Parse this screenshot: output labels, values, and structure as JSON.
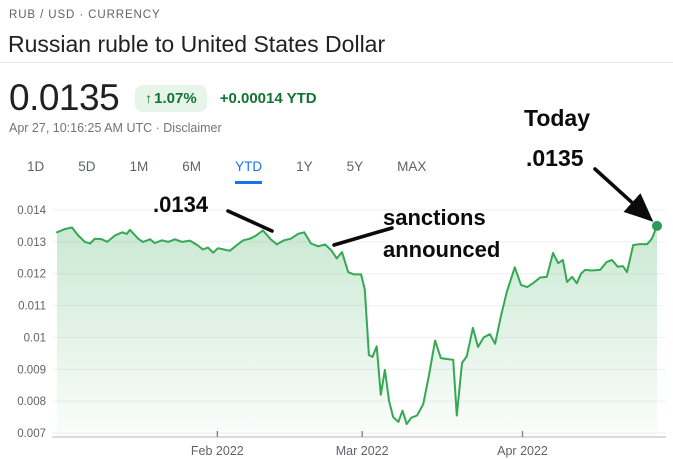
{
  "header": {
    "breadcrumb": "RUB / USD · CURRENCY",
    "title": "Russian ruble to United States Dollar"
  },
  "quote": {
    "price": "0.0135",
    "change_arrow": "↑",
    "change_percent": "1.07%",
    "change_ytd": "+0.00014 YTD",
    "timestamp": "Apr 27, 10:16:25 AM UTC",
    "separator": "·",
    "disclaimer_label": "Disclaimer"
  },
  "range_tabs": {
    "items": [
      "1D",
      "5D",
      "1M",
      "6M",
      "YTD",
      "1Y",
      "5Y",
      "MAX"
    ],
    "selected": "YTD"
  },
  "annotations": {
    "peak_label": ".0134",
    "sanctions_line1": "sanctions",
    "sanctions_line2": "announced",
    "today_label": "Today",
    "today_value": ".0135"
  },
  "colors": {
    "accent_green": "#34a853",
    "dot_green": "#2d9b57",
    "badge_bg": "#e6f4ea",
    "badge_text": "#137333",
    "tab_active": "#1a73e8",
    "text_primary": "#202124",
    "text_secondary": "#5f6368",
    "annotation": "#0b0b0b",
    "grid": "#eef0f2",
    "axis": "#c4c7cc"
  },
  "chart_data": {
    "type": "area",
    "title": "Russian ruble to United States Dollar — YTD",
    "series_name": "RUB / USD",
    "x_unit": "days since Jan 1, 2022",
    "x_range": [
      0,
      116
    ],
    "ylim": [
      0.007,
      0.0141
    ],
    "grid": "horizontal",
    "legend": "none",
    "y_ticks": [
      {
        "label": "0.014",
        "value": 0.014
      },
      {
        "label": "0.013",
        "value": 0.013
      },
      {
        "label": "0.012",
        "value": 0.012
      },
      {
        "label": "0.011",
        "value": 0.011
      },
      {
        "label": "0.01",
        "value": 0.01
      },
      {
        "label": "0.009",
        "value": 0.009
      },
      {
        "label": "0.008",
        "value": 0.008
      },
      {
        "label": "0.007",
        "value": 0.007
      }
    ],
    "x_ticks": [
      {
        "label": "Feb 2022",
        "day": 31
      },
      {
        "label": "Mar 2022",
        "day": 59
      },
      {
        "label": "Apr 2022",
        "day": 90
      }
    ],
    "series": [
      {
        "name": "RUB/USD",
        "points": [
          [
            0,
            0.0133
          ],
          [
            1.5,
            0.0134
          ],
          [
            2.9,
            0.01345
          ],
          [
            4.1,
            0.0132
          ],
          [
            5.4,
            0.013
          ],
          [
            6.4,
            0.01295
          ],
          [
            7.3,
            0.0131
          ],
          [
            8.7,
            0.01308
          ],
          [
            9.7,
            0.013
          ],
          [
            11.2,
            0.0132
          ],
          [
            12.6,
            0.0133
          ],
          [
            13.5,
            0.01325
          ],
          [
            14.1,
            0.01338
          ],
          [
            15.7,
            0.0131
          ],
          [
            16.6,
            0.013
          ],
          [
            18,
            0.01308
          ],
          [
            18.9,
            0.01296
          ],
          [
            20.3,
            0.01305
          ],
          [
            21.5,
            0.013
          ],
          [
            22.8,
            0.01308
          ],
          [
            24.2,
            0.013
          ],
          [
            25.7,
            0.01304
          ],
          [
            27.1,
            0.0129
          ],
          [
            28.2,
            0.01276
          ],
          [
            29.2,
            0.01282
          ],
          [
            30.2,
            0.01266
          ],
          [
            31.1,
            0.0128
          ],
          [
            32.3,
            0.01276
          ],
          [
            33.4,
            0.01272
          ],
          [
            34.8,
            0.0129
          ],
          [
            36,
            0.01305
          ],
          [
            37.3,
            0.0131
          ],
          [
            38.5,
            0.0132
          ],
          [
            39.8,
            0.01336
          ],
          [
            41.2,
            0.0131
          ],
          [
            42.5,
            0.01292
          ],
          [
            43.9,
            0.01305
          ],
          [
            45.2,
            0.0131
          ],
          [
            46.6,
            0.01325
          ],
          [
            47.8,
            0.0133
          ],
          [
            49.1,
            0.01295
          ],
          [
            50.5,
            0.01286
          ],
          [
            51.8,
            0.01292
          ],
          [
            53,
            0.01274
          ],
          [
            54.1,
            0.01248
          ],
          [
            55.1,
            0.01268
          ],
          [
            56.3,
            0.01205
          ],
          [
            57.4,
            0.01198
          ],
          [
            58.8,
            0.01198
          ],
          [
            59.5,
            0.0115
          ],
          [
            60.3,
            0.00945
          ],
          [
            61,
            0.00939
          ],
          [
            61.8,
            0.00972
          ],
          [
            62.6,
            0.0082
          ],
          [
            63.4,
            0.00898
          ],
          [
            64.2,
            0.008
          ],
          [
            65,
            0.0075
          ],
          [
            66,
            0.00735
          ],
          [
            66.8,
            0.0077
          ],
          [
            67.6,
            0.00728
          ],
          [
            68.5,
            0.00748
          ],
          [
            69.6,
            0.00755
          ],
          [
            70.8,
            0.0079
          ],
          [
            71.9,
            0.0088
          ],
          [
            73.1,
            0.0099
          ],
          [
            74.2,
            0.00935
          ],
          [
            75.5,
            0.00932
          ],
          [
            76.6,
            0.0093
          ],
          [
            77.3,
            0.00755
          ],
          [
            78.3,
            0.0092
          ],
          [
            79.2,
            0.0094
          ],
          [
            80.4,
            0.0103
          ],
          [
            81.4,
            0.0097
          ],
          [
            82.5,
            0.01
          ],
          [
            83.7,
            0.0101
          ],
          [
            84.7,
            0.0098
          ],
          [
            85.8,
            0.01065
          ],
          [
            87,
            0.01145
          ],
          [
            88.5,
            0.0122
          ],
          [
            89.7,
            0.01165
          ],
          [
            90.9,
            0.01158
          ],
          [
            92,
            0.0117
          ],
          [
            93.4,
            0.01188
          ],
          [
            94.7,
            0.0119
          ],
          [
            95.9,
            0.01265
          ],
          [
            96.9,
            0.01233
          ],
          [
            97.8,
            0.01243
          ],
          [
            98.6,
            0.01174
          ],
          [
            99.6,
            0.0119
          ],
          [
            100.5,
            0.0117
          ],
          [
            101.3,
            0.012
          ],
          [
            102.1,
            0.01212
          ],
          [
            103.4,
            0.0121
          ],
          [
            105,
            0.01212
          ],
          [
            106.3,
            0.01237
          ],
          [
            107.3,
            0.01243
          ],
          [
            108.4,
            0.01222
          ],
          [
            109.4,
            0.01224
          ],
          [
            110.2,
            0.01205
          ],
          [
            111.4,
            0.0129
          ],
          [
            112.7,
            0.01293
          ],
          [
            114.1,
            0.01293
          ],
          [
            115,
            0.0131
          ],
          [
            116,
            0.0135
          ]
        ]
      }
    ],
    "endpoint": {
      "day": 116,
      "value": 0.0135
    },
    "annotated_points": [
      {
        "label": ".0134",
        "day": 40,
        "value": 0.0134
      },
      {
        "label": "sanctions announced",
        "day": 54,
        "value": 0.0127
      },
      {
        "label": "Today .0135",
        "day": 116,
        "value": 0.0135
      }
    ]
  }
}
